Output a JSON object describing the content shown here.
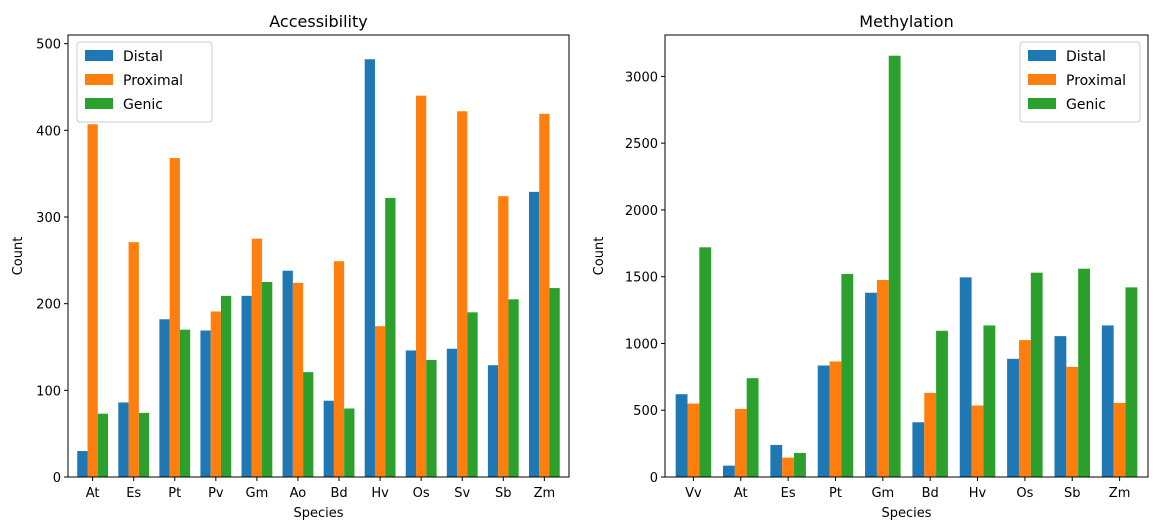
{
  "chart_data": [
    {
      "type": "bar",
      "title": "Accessibility",
      "xlabel": "Species",
      "ylabel": "Count",
      "categories": [
        "At",
        "Es",
        "Pt",
        "Pv",
        "Gm",
        "Ao",
        "Bd",
        "Hv",
        "Os",
        "Sv",
        "Sb",
        "Zm"
      ],
      "ylim": [
        0,
        510
      ],
      "yticks": [
        0,
        100,
        200,
        300,
        400,
        500
      ],
      "legend_position": "top-left",
      "grid": false,
      "series": [
        {
          "name": "Distal",
          "color": "#1f77b4",
          "values": [
            30,
            86,
            182,
            169,
            209,
            238,
            88,
            482,
            146,
            148,
            129,
            329
          ]
        },
        {
          "name": "Proximal",
          "color": "#ff7f0e",
          "values": [
            407,
            271,
            368,
            191,
            275,
            224,
            249,
            174,
            440,
            422,
            324,
            419
          ]
        },
        {
          "name": "Genic",
          "color": "#2ca02c",
          "values": [
            73,
            74,
            170,
            209,
            225,
            121,
            79,
            322,
            135,
            190,
            205,
            218
          ]
        }
      ]
    },
    {
      "type": "bar",
      "title": "Methylation",
      "xlabel": "Species",
      "ylabel": "Count",
      "categories": [
        "Vv",
        "At",
        "Es",
        "Pt",
        "Gm",
        "Bd",
        "Hv",
        "Os",
        "Sb",
        "Zm"
      ],
      "ylim": [
        0,
        3310
      ],
      "yticks": [
        0,
        500,
        1000,
        1500,
        2000,
        2500,
        3000
      ],
      "legend_position": "top-right",
      "grid": false,
      "series": [
        {
          "name": "Distal",
          "color": "#1f77b4",
          "values": [
            620,
            85,
            240,
            835,
            1380,
            410,
            1495,
            885,
            1055,
            1135
          ]
        },
        {
          "name": "Proximal",
          "color": "#ff7f0e",
          "values": [
            550,
            510,
            145,
            865,
            1475,
            630,
            535,
            1025,
            825,
            555
          ]
        },
        {
          "name": "Genic",
          "color": "#2ca02c",
          "values": [
            1720,
            740,
            180,
            1520,
            3155,
            1095,
            1135,
            1530,
            1560,
            1420
          ]
        }
      ]
    }
  ]
}
